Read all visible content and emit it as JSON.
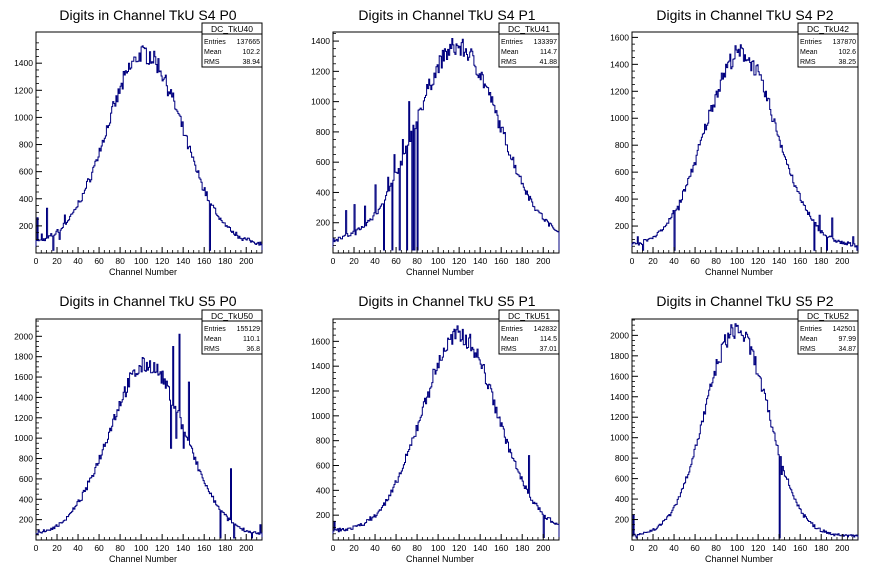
{
  "colors": {
    "histogram": "#00007f",
    "axis": "#000000",
    "background": "#ffffff"
  },
  "stats_labels": {
    "entries": "Entries",
    "mean": "Mean",
    "rms": "RMS"
  },
  "chart_data": [
    {
      "type": "histogram",
      "title": "Digits in Channel TkU S4 P0",
      "xlabel": "Channel Number",
      "ylabel": "",
      "xlim": [
        0,
        215
      ],
      "ylim": [
        0,
        1630
      ],
      "xticks": [
        0,
        20,
        40,
        60,
        80,
        100,
        120,
        140,
        160,
        180,
        200
      ],
      "yticks": [
        200,
        400,
        600,
        800,
        1000,
        1200,
        1400
      ],
      "grid": false,
      "stats": {
        "name": "DC_TkU40",
        "entries": "137665",
        "mean": "102.2",
        "rms": "38.94"
      },
      "shape": {
        "peak_x": 103,
        "peak_y": 1470,
        "width": 36,
        "baseline": 60
      },
      "spikes": [
        [
          1,
          260
        ],
        [
          5,
          140
        ],
        [
          10,
          330
        ],
        [
          16,
          20
        ],
        [
          22,
          100
        ],
        [
          27,
          280
        ],
        [
          35,
          300
        ],
        [
          165,
          20
        ],
        [
          170,
          330
        ]
      ]
    },
    {
      "type": "histogram",
      "title": "Digits in Channel TkU S4 P1",
      "xlabel": "Channel Number",
      "ylabel": "",
      "xlim": [
        0,
        215
      ],
      "ylim": [
        0,
        1460
      ],
      "xticks": [
        0,
        20,
        40,
        60,
        80,
        100,
        120,
        140,
        160,
        180,
        200
      ],
      "yticks": [
        200,
        400,
        600,
        800,
        1000,
        1200,
        1400
      ],
      "grid": false,
      "stats": {
        "name": "DC_TkU41",
        "entries": "133397",
        "mean": "114.7",
        "rms": "41.88"
      },
      "shape": {
        "peak_x": 118,
        "peak_y": 1360,
        "width": 40,
        "baseline": 70
      },
      "spikes": [
        [
          12,
          280
        ],
        [
          20,
          320
        ],
        [
          30,
          310
        ],
        [
          40,
          450
        ],
        [
          48,
          20
        ],
        [
          52,
          500
        ],
        [
          56,
          20
        ],
        [
          58,
          650
        ],
        [
          63,
          20
        ],
        [
          66,
          750
        ],
        [
          70,
          20
        ],
        [
          72,
          1000
        ],
        [
          75,
          20
        ],
        [
          77,
          20
        ],
        [
          80,
          20
        ],
        [
          82,
          950
        ]
      ]
    },
    {
      "type": "histogram",
      "title": "Digits in Channel TkU S4 P2",
      "xlabel": "Channel Number",
      "ylabel": "",
      "xlim": [
        0,
        215
      ],
      "ylim": [
        0,
        1640
      ],
      "xticks": [
        0,
        20,
        40,
        60,
        80,
        100,
        120,
        140,
        160,
        180,
        200
      ],
      "yticks": [
        200,
        400,
        600,
        800,
        1000,
        1200,
        1400,
        1600
      ],
      "grid": false,
      "stats": {
        "name": "DC_TkU42",
        "entries": "137870",
        "mean": "102.6",
        "rms": "38.25"
      },
      "shape": {
        "peak_x": 103,
        "peak_y": 1480,
        "width": 34,
        "baseline": 50
      },
      "spikes": [
        [
          5,
          120
        ],
        [
          10,
          20
        ],
        [
          40,
          20
        ],
        [
          44,
          320
        ],
        [
          173,
          20
        ],
        [
          178,
          280
        ],
        [
          185,
          20
        ],
        [
          190,
          260
        ],
        [
          210,
          120
        ],
        [
          214,
          20
        ]
      ]
    },
    {
      "type": "histogram",
      "title": "Digits in Channel TkU S5 P0",
      "xlabel": "Channel Number",
      "ylabel": "",
      "xlim": [
        0,
        215
      ],
      "ylim": [
        0,
        2170
      ],
      "xticks": [
        0,
        20,
        40,
        60,
        80,
        100,
        120,
        140,
        160,
        180,
        200
      ],
      "yticks": [
        200,
        400,
        600,
        800,
        1000,
        1200,
        1400,
        1600,
        1800,
        2000
      ],
      "grid": false,
      "stats": {
        "name": "DC_TkU50",
        "entries": "155129",
        "mean": "110.1",
        "rms": "36.8"
      },
      "shape": {
        "peak_x": 105,
        "peak_y": 1720,
        "width": 36,
        "baseline": 40
      },
      "spikes": [
        [
          2,
          100
        ],
        [
          128,
          900
        ],
        [
          130,
          1900
        ],
        [
          133,
          1000
        ],
        [
          136,
          2020
        ],
        [
          140,
          900
        ],
        [
          145,
          1550
        ],
        [
          148,
          900
        ],
        [
          175,
          20
        ],
        [
          185,
          700
        ],
        [
          188,
          20
        ],
        [
          205,
          20
        ],
        [
          213,
          150
        ]
      ]
    },
    {
      "type": "histogram",
      "title": "Digits in Channel TkU S5 P1",
      "xlabel": "Channel Number",
      "ylabel": "",
      "xlim": [
        0,
        215
      ],
      "ylim": [
        0,
        1780
      ],
      "xticks": [
        0,
        20,
        40,
        60,
        80,
        100,
        120,
        140,
        160,
        180,
        200
      ],
      "yticks": [
        200,
        400,
        600,
        800,
        1000,
        1200,
        1400,
        1600
      ],
      "grid": false,
      "stats": {
        "name": "DC_TkU51",
        "entries": "142832",
        "mean": "114.5",
        "rms": "37.01"
      },
      "shape": {
        "peak_x": 120,
        "peak_y": 1650,
        "width": 36,
        "baseline": 70
      },
      "spikes": [
        [
          1,
          150
        ],
        [
          186,
          680
        ],
        [
          200,
          20
        ],
        [
          205,
          180
        ]
      ]
    },
    {
      "type": "histogram",
      "title": "Digits in Channel TkU S5 P2",
      "xlabel": "Channel Number",
      "ylabel": "",
      "xlim": [
        0,
        215
      ],
      "ylim": [
        0,
        2160
      ],
      "xticks": [
        0,
        20,
        40,
        60,
        80,
        100,
        120,
        140,
        160,
        180,
        200
      ],
      "yticks": [
        200,
        400,
        600,
        800,
        1000,
        1200,
        1400,
        1600,
        1800,
        2000
      ],
      "grid": false,
      "stats": {
        "name": "DC_TkU52",
        "entries": "142501",
        "mean": "97.99",
        "rms": "34.87"
      },
      "shape": {
        "peak_x": 99,
        "peak_y": 2050,
        "width": 30,
        "baseline": 40
      },
      "spikes": [
        [
          1,
          240
        ],
        [
          4,
          20
        ],
        [
          140,
          20
        ],
        [
          142,
          640
        ]
      ]
    }
  ]
}
